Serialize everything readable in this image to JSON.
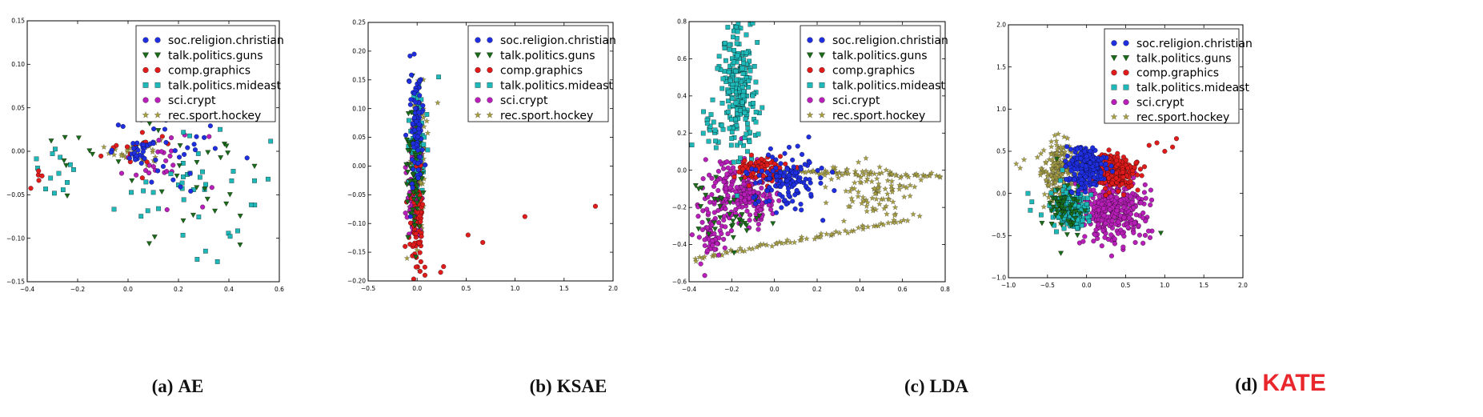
{
  "chart_data": [
    {
      "type": "scatter",
      "panel": "(a)",
      "title": "AE",
      "xlim": [
        -0.4,
        0.6
      ],
      "ylim": [
        -0.15,
        0.15
      ],
      "xticks": [
        "−0.4",
        "−0.2",
        "0.0",
        "0.2",
        "0.4",
        "0.6"
      ],
      "yticks": [
        "−0.15",
        "−0.10",
        "−0.05",
        "0.00",
        "0.05",
        "0.10",
        "0.15"
      ],
      "xtick_values": [
        -0.4,
        -0.2,
        0.0,
        0.2,
        0.4,
        0.6
      ],
      "ytick_values": [
        -0.15,
        -0.1,
        -0.05,
        0.0,
        0.05,
        0.1,
        0.15
      ],
      "legend_position": "top-right",
      "series": [
        {
          "name": "soc.religion.christian",
          "clusters": [
            {
              "cx": 0.2,
              "cy": 0.0,
              "sx": 0.13,
              "sy": 0.02,
              "n": 35
            },
            {
              "cx": 0.05,
              "cy": 0.0,
              "sx": 0.04,
              "sy": 0.006,
              "n": 20
            }
          ]
        },
        {
          "name": "talk.politics.guns",
          "clusters": [
            {
              "cx": 0.25,
              "cy": -0.03,
              "sx": 0.14,
              "sy": 0.04,
              "n": 30
            },
            {
              "cx": -0.25,
              "cy": 0.0,
              "sx": 0.06,
              "sy": 0.02,
              "n": 8
            }
          ]
        },
        {
          "name": "comp.graphics",
          "clusters": [
            {
              "cx": 0.02,
              "cy": 0.0,
              "sx": 0.08,
              "sy": 0.01,
              "n": 15
            },
            {
              "cx": -0.35,
              "cy": -0.03,
              "sx": 0.03,
              "sy": 0.01,
              "n": 5
            }
          ]
        },
        {
          "name": "talk.politics.mideast",
          "clusters": [
            {
              "cx": 0.25,
              "cy": -0.04,
              "sx": 0.15,
              "sy": 0.04,
              "n": 45
            },
            {
              "cx": -0.3,
              "cy": -0.02,
              "sx": 0.06,
              "sy": 0.02,
              "n": 12
            }
          ]
        },
        {
          "name": "sci.crypt",
          "clusters": [
            {
              "cx": 0.15,
              "cy": -0.01,
              "sx": 0.1,
              "sy": 0.02,
              "n": 25
            }
          ]
        },
        {
          "name": "rec.sport.hockey",
          "clusters": [
            {
              "cx": 0.03,
              "cy": 0.0,
              "sx": 0.05,
              "sy": 0.008,
              "n": 30
            }
          ]
        }
      ]
    },
    {
      "type": "scatter",
      "panel": "(b)",
      "title": "KSAE",
      "xlim": [
        -0.5,
        2.0
      ],
      "ylim": [
        -0.2,
        0.25
      ],
      "xticks": [
        "−0.5",
        "0.0",
        "0.5",
        "1.0",
        "1.5",
        "2.0"
      ],
      "yticks": [
        "−0.20",
        "−0.15",
        "−0.10",
        "−0.05",
        "0.00",
        "0.05",
        "0.10",
        "0.15",
        "0.20",
        "0.25"
      ],
      "xtick_values": [
        -0.5,
        0.0,
        0.5,
        1.0,
        1.5,
        2.0
      ],
      "ytick_values": [
        -0.2,
        -0.15,
        -0.1,
        -0.05,
        0.0,
        0.05,
        0.1,
        0.15,
        0.2,
        0.25
      ],
      "legend_position": "top-right",
      "series": [
        {
          "name": "soc.religion.christian",
          "clusters": [
            {
              "cx": -0.02,
              "cy": 0.07,
              "sx": 0.04,
              "sy": 0.05,
              "n": 90
            }
          ]
        },
        {
          "name": "talk.politics.guns",
          "clusters": [
            {
              "cx": -0.03,
              "cy": 0.0,
              "sx": 0.04,
              "sy": 0.05,
              "n": 70
            }
          ]
        },
        {
          "name": "comp.graphics",
          "clusters": [
            {
              "cx": 0.0,
              "cy": -0.1,
              "sx": 0.04,
              "sy": 0.04,
              "n": 70
            }
          ],
          "points": [
            [
              0.52,
              -0.12
            ],
            [
              0.67,
              -0.133
            ],
            [
              1.1,
              -0.088
            ],
            [
              1.82,
              -0.07
            ],
            [
              0.27,
              -0.175
            ],
            [
              0.24,
              -0.185
            ],
            [
              0.08,
              -0.19
            ]
          ]
        },
        {
          "name": "talk.politics.mideast",
          "clusters": [
            {
              "cx": 0.0,
              "cy": 0.04,
              "sx": 0.04,
              "sy": 0.05,
              "n": 80
            }
          ],
          "points": [
            [
              0.22,
              0.155
            ]
          ]
        },
        {
          "name": "sci.crypt",
          "clusters": [
            {
              "cx": -0.03,
              "cy": -0.04,
              "sx": 0.04,
              "sy": 0.05,
              "n": 90
            }
          ]
        },
        {
          "name": "rec.sport.hockey",
          "clusters": [
            {
              "cx": 0.01,
              "cy": 0.0,
              "sx": 0.035,
              "sy": 0.07,
              "n": 150
            }
          ],
          "points": [
            [
              0.21,
              0.11
            ]
          ]
        }
      ]
    },
    {
      "type": "scatter",
      "panel": "(c)",
      "title": "LDA",
      "xlim": [
        -0.4,
        0.8
      ],
      "ylim": [
        -0.6,
        0.8
      ],
      "xticks": [
        "−0.4",
        "−0.2",
        "0.0",
        "0.2",
        "0.4",
        "0.6",
        "0.8"
      ],
      "yticks": [
        "−0.6",
        "−0.4",
        "−0.2",
        "0.0",
        "0.2",
        "0.4",
        "0.6",
        "0.8"
      ],
      "xtick_values": [
        -0.4,
        -0.2,
        0.0,
        0.2,
        0.4,
        0.6,
        0.8
      ],
      "ytick_values": [
        -0.6,
        -0.4,
        -0.2,
        0.0,
        0.2,
        0.4,
        0.6,
        0.8
      ],
      "legend_position": "top-right",
      "series": [
        {
          "name": "soc.religion.christian",
          "clusters": [
            {
              "cx": 0.05,
              "cy": -0.05,
              "sx": 0.08,
              "sy": 0.07,
              "n": 130
            }
          ]
        },
        {
          "name": "talk.politics.guns",
          "clusters": [
            {
              "cx": -0.2,
              "cy": -0.2,
              "sx": 0.08,
              "sy": 0.1,
              "n": 40
            }
          ]
        },
        {
          "name": "comp.graphics",
          "clusters": [
            {
              "cx": -0.05,
              "cy": 0.0,
              "sx": 0.07,
              "sy": 0.04,
              "n": 90
            }
          ]
        },
        {
          "name": "talk.politics.mideast",
          "clusters": [
            {
              "cx": -0.17,
              "cy": 0.45,
              "sx": 0.04,
              "sy": 0.17,
              "n": 220
            },
            {
              "cx": -0.28,
              "cy": 0.22,
              "sx": 0.05,
              "sy": 0.06,
              "n": 25
            }
          ]
        },
        {
          "name": "sci.crypt",
          "clusters": [
            {
              "cx": -0.15,
              "cy": -0.12,
              "sx": 0.08,
              "sy": 0.09,
              "n": 240
            },
            {
              "cx": -0.3,
              "cy": -0.35,
              "sx": 0.03,
              "sy": 0.08,
              "n": 60
            }
          ]
        },
        {
          "name": "rec.sport.hockey",
          "lines": [
            [
              0.0,
              0.0,
              0.78,
              -0.03
            ],
            [
              -0.38,
              -0.48,
              0.62,
              -0.27
            ]
          ],
          "clusters": [
            {
              "cx": 0.45,
              "cy": -0.12,
              "sx": 0.12,
              "sy": 0.07,
              "n": 90
            }
          ]
        }
      ]
    },
    {
      "type": "scatter",
      "panel": "(d)",
      "title": "KATE",
      "xlim": [
        -1.0,
        2.0
      ],
      "ylim": [
        -1.0,
        2.0
      ],
      "xticks": [
        "−1.0",
        "−0.5",
        "0.0",
        "0.5",
        "1.0",
        "1.5",
        "2.0"
      ],
      "yticks": [
        "−1.0",
        "−0.5",
        "0.0",
        "0.5",
        "1.0",
        "1.5",
        "2.0"
      ],
      "xtick_values": [
        -1.0,
        -0.5,
        0.0,
        0.5,
        1.0,
        1.5,
        2.0
      ],
      "ytick_values": [
        -1.0,
        -0.5,
        0.0,
        0.5,
        1.0,
        1.5,
        2.0
      ],
      "legend_position": "top-right",
      "series": [
        {
          "name": "soc.religion.christian",
          "clusters": [
            {
              "cx": 0.0,
              "cy": 0.3,
              "sx": 0.12,
              "sy": 0.13,
              "n": 230
            }
          ]
        },
        {
          "name": "talk.politics.guns",
          "clusters": [
            {
              "cx": -0.3,
              "cy": -0.15,
              "sx": 0.12,
              "sy": 0.15,
              "n": 60
            }
          ],
          "points": [
            [
              0.95,
              -0.47
            ]
          ]
        },
        {
          "name": "comp.graphics",
          "clusters": [
            {
              "cx": 0.35,
              "cy": 0.25,
              "sx": 0.14,
              "sy": 0.1,
              "n": 230
            }
          ],
          "points": [
            [
              0.9,
              0.6
            ],
            [
              1.0,
              0.5
            ],
            [
              1.1,
              0.55
            ],
            [
              1.15,
              0.65
            ],
            [
              0.8,
              0.57
            ]
          ]
        },
        {
          "name": "talk.politics.mideast",
          "clusters": [
            {
              "cx": -0.2,
              "cy": -0.2,
              "sx": 0.12,
              "sy": 0.15,
              "n": 170
            }
          ],
          "points": [
            [
              -0.7,
              -0.1
            ],
            [
              -0.75,
              0.0
            ],
            [
              -0.72,
              -0.2
            ]
          ]
        },
        {
          "name": "sci.crypt",
          "clusters": [
            {
              "cx": 0.35,
              "cy": -0.2,
              "sx": 0.2,
              "sy": 0.2,
              "n": 330
            }
          ]
        },
        {
          "name": "rec.sport.hockey",
          "clusters": [
            {
              "cx": -0.35,
              "cy": 0.25,
              "sx": 0.12,
              "sy": 0.18,
              "n": 200
            }
          ],
          "points": [
            [
              -0.9,
              0.35
            ],
            [
              -0.8,
              0.4
            ],
            [
              -0.85,
              0.3
            ]
          ]
        }
      ]
    }
  ],
  "legend": {
    "entries": [
      "soc.religion.christian",
      "talk.politics.guns",
      "comp.graphics",
      "talk.politics.mideast",
      "sci.crypt",
      "rec.sport.hockey"
    ],
    "markers": [
      "circle",
      "triangle-down",
      "circle",
      "square",
      "circle",
      "star"
    ],
    "colors": [
      "#1f2fe0",
      "#1a6b1a",
      "#e01b1b",
      "#1fb8b8",
      "#b81fb8",
      "#a8a040"
    ]
  },
  "captions": {
    "a": {
      "label": "(a)",
      "name": "AE"
    },
    "b": {
      "label": "(b)",
      "name": "KSAE"
    },
    "c": {
      "label": "(c)",
      "name": "LDA"
    },
    "d": {
      "label": "(d)",
      "name": "KATE"
    }
  },
  "colors": {
    "highlight": "#e8262c",
    "axis": "#000000"
  }
}
